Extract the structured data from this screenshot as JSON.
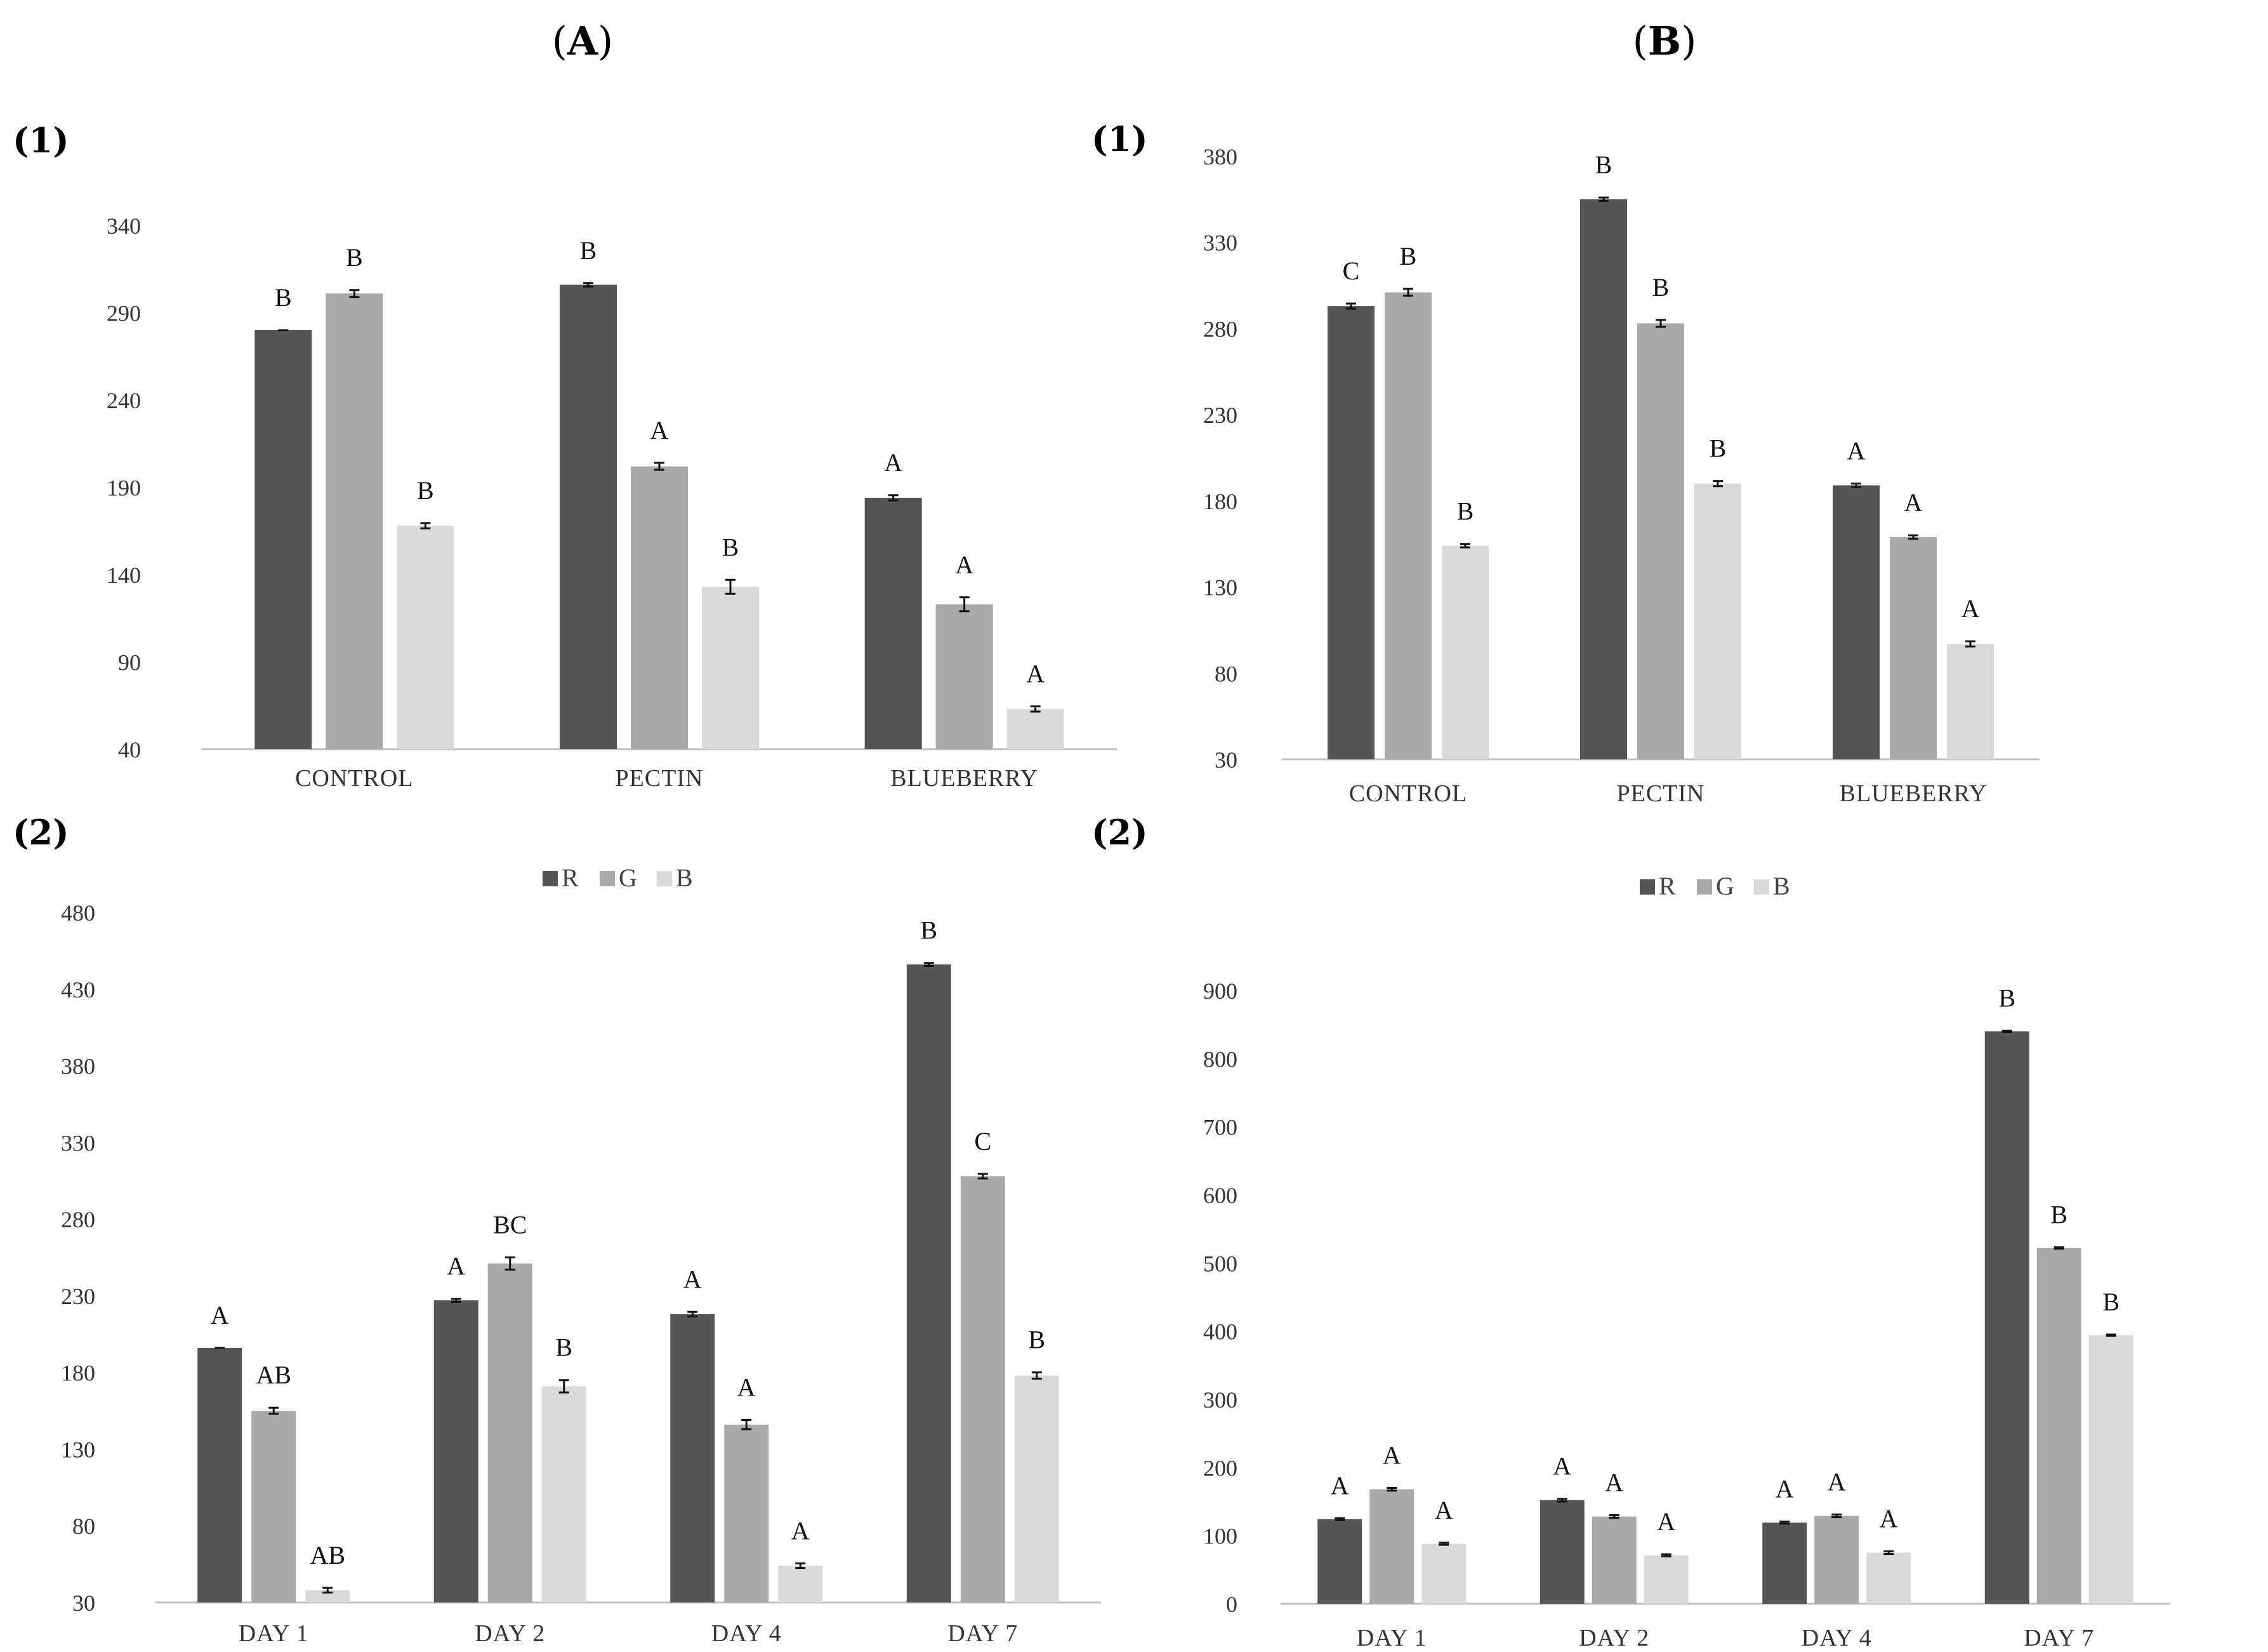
{
  "colors": {
    "R": "#555555",
    "G": "#a9a9a9",
    "B": "#d9d9d9"
  },
  "column_titles": [
    {
      "prefix": "(",
      "letter": "A",
      "suffix": ")"
    },
    {
      "prefix": "(",
      "letter": "B",
      "suffix": ")"
    }
  ],
  "chart_data": [
    {
      "id": "A1",
      "panel": "(1)",
      "column": "A",
      "type": "bar",
      "title": "",
      "xlabel": "",
      "ylabel": "",
      "categories": [
        "CONTROL",
        "PECTIN",
        "BLUEBERRY"
      ],
      "ylim": [
        40,
        340
      ],
      "yticks": [
        40,
        90,
        140,
        190,
        240,
        290,
        340
      ],
      "legend": null,
      "series": [
        {
          "name": "R",
          "values": [
            280,
            306,
            184
          ],
          "errors": [
            0,
            1,
            1.5
          ],
          "letters": [
            "B",
            "B",
            "A"
          ]
        },
        {
          "name": "G",
          "values": [
            301,
            202,
            123
          ],
          "errors": [
            2,
            2,
            4
          ],
          "letters": [
            "B",
            "A",
            "A"
          ]
        },
        {
          "name": "B",
          "values": [
            168,
            133,
            63
          ],
          "errors": [
            1.5,
            4,
            1.5
          ],
          "letters": [
            "B",
            "B",
            "A"
          ]
        }
      ]
    },
    {
      "id": "B1",
      "panel": "(1)",
      "column": "B",
      "type": "bar",
      "title": "",
      "xlabel": "",
      "ylabel": "",
      "categories": [
        "CONTROL",
        "PECTIN",
        "BLUEBERRY"
      ],
      "ylim": [
        30,
        380
      ],
      "yticks": [
        30,
        80,
        130,
        180,
        230,
        280,
        330,
        380
      ],
      "legend": null,
      "series": [
        {
          "name": "R",
          "values": [
            293,
            355,
            189
          ],
          "errors": [
            1.5,
            1,
            1
          ],
          "letters": [
            "C",
            "B",
            "A"
          ]
        },
        {
          "name": "G",
          "values": [
            301,
            283,
            159
          ],
          "errors": [
            2,
            2,
            1
          ],
          "letters": [
            "B",
            "B",
            "A"
          ]
        },
        {
          "name": "B",
          "values": [
            154,
            190,
            97
          ],
          "errors": [
            1,
            1.5,
            1.5
          ],
          "letters": [
            "B",
            "B",
            "A"
          ]
        }
      ]
    },
    {
      "id": "A2",
      "panel": "(2)",
      "column": "A",
      "type": "bar",
      "title": "",
      "xlabel": "",
      "ylabel": "",
      "categories": [
        "DAY 1",
        "DAY 2",
        "DAY 4",
        "DAY 7"
      ],
      "ylim": [
        30,
        480
      ],
      "yticks": [
        30,
        80,
        130,
        180,
        230,
        280,
        330,
        380,
        430,
        480
      ],
      "legend": "top-center",
      "series": [
        {
          "name": "R",
          "values": [
            196,
            227,
            218,
            446
          ],
          "errors": [
            0,
            1,
            1.5,
            1
          ],
          "letters": [
            "A",
            "A",
            "A",
            "B"
          ]
        },
        {
          "name": "G",
          "values": [
            155,
            251,
            146,
            308
          ],
          "errors": [
            2,
            4,
            3,
            1.5
          ],
          "letters": [
            "AB",
            "BC",
            "A",
            "C"
          ]
        },
        {
          "name": "B",
          "values": [
            38,
            171,
            54,
            178
          ],
          "errors": [
            1.5,
            4,
            1.5,
            2
          ],
          "letters": [
            "AB",
            "B",
            "A",
            "B"
          ]
        }
      ]
    },
    {
      "id": "B2",
      "panel": "(2)",
      "column": "B",
      "type": "bar",
      "title": "",
      "xlabel": "",
      "ylabel": "",
      "categories": [
        "DAY 1",
        "DAY 2",
        "DAY 4",
        "DAY 7"
      ],
      "ylim": [
        0,
        900
      ],
      "yticks": [
        0,
        100,
        200,
        300,
        400,
        500,
        600,
        700,
        800,
        900
      ],
      "legend": "top-center",
      "series": [
        {
          "name": "R",
          "values": [
            124,
            152,
            119,
            840
          ],
          "errors": [
            1.5,
            2,
            1.5,
            1
          ],
          "letters": [
            "A",
            "A",
            "A",
            "B"
          ]
        },
        {
          "name": "G",
          "values": [
            168,
            128,
            129,
            522
          ],
          "errors": [
            2,
            2,
            2,
            1
          ],
          "letters": [
            "A",
            "A",
            "A",
            "B"
          ]
        },
        {
          "name": "B",
          "values": [
            88,
            71,
            75,
            394
          ],
          "errors": [
            1.5,
            1.5,
            2,
            1
          ],
          "letters": [
            "A",
            "A",
            "A",
            "B"
          ]
        }
      ]
    }
  ]
}
